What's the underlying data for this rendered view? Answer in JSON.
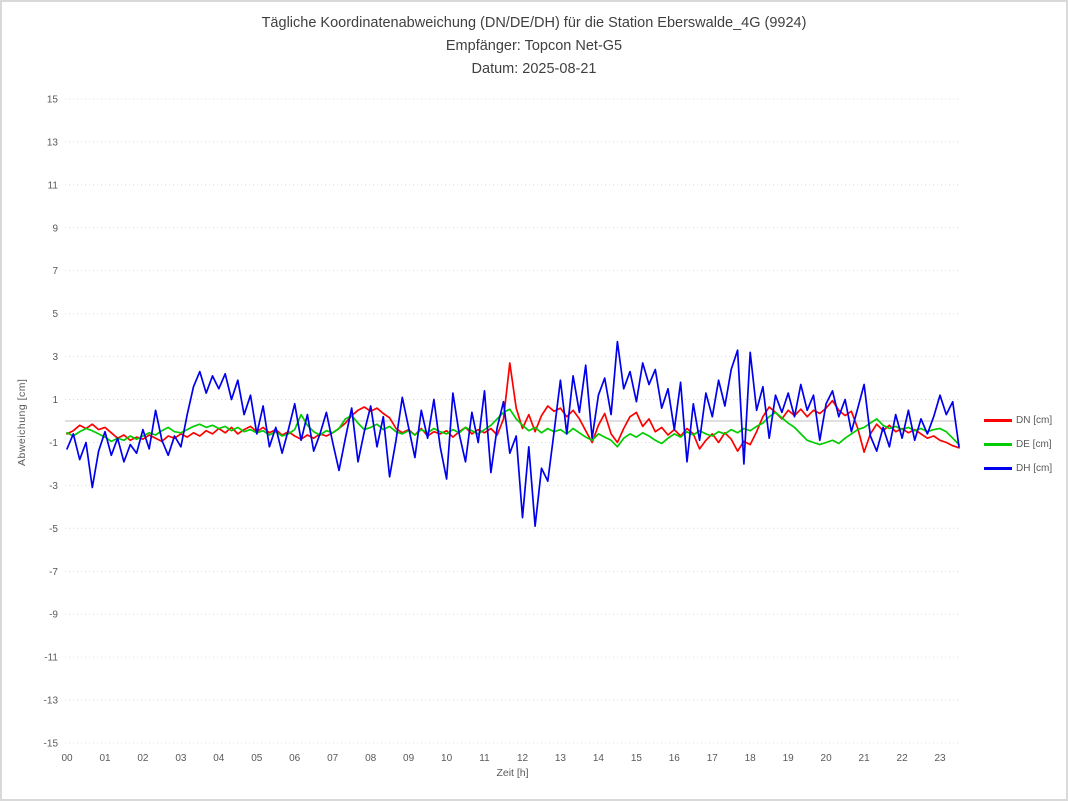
{
  "window": {
    "background": "#ffffff",
    "border_color": "#d9d9d9"
  },
  "chart_data": {
    "type": "line",
    "titles": [
      "Tägliche Koordinatenabweichung (DN/DE/DH) für die Station Eberswalde_4G (9924)",
      "Empfänger: Topcon Net-G5",
      "Datum: 2025-08-21"
    ],
    "xlabel": "Zeit [h]",
    "ylabel": "Abweichung [cm]",
    "ylim": [
      -15,
      15
    ],
    "xlim_hours": [
      0,
      24
    ],
    "y_ticks": [
      15,
      13,
      11,
      9,
      7,
      5,
      3,
      1,
      -1,
      -3,
      -5,
      -7,
      -9,
      -11,
      -13,
      -15
    ],
    "x_ticks": [
      "00",
      "01",
      "02",
      "03",
      "04",
      "05",
      "06",
      "07",
      "08",
      "09",
      "10",
      "11",
      "12",
      "13",
      "14",
      "15",
      "16",
      "17",
      "18",
      "19",
      "20",
      "21",
      "22",
      "23"
    ],
    "grid": "horizontal-dotted",
    "grid_color": "#d9d9d9",
    "zero_line": true,
    "zero_line_color": "#bfbfbf",
    "legend_position": "right",
    "sample_interval_minutes": 10,
    "x_start_hour": 0,
    "series": [
      {
        "name": "DN [cm]",
        "color": "#ff0000",
        "values": [
          -0.6,
          -0.45,
          -0.2,
          -0.35,
          -0.15,
          -0.4,
          -0.3,
          -0.55,
          -0.8,
          -0.65,
          -0.9,
          -0.75,
          -0.85,
          -0.65,
          -0.8,
          -0.95,
          -0.7,
          -0.8,
          -0.6,
          -0.75,
          -0.55,
          -0.7,
          -0.45,
          -0.6,
          -0.35,
          -0.55,
          -0.3,
          -0.6,
          -0.4,
          -0.25,
          -0.5,
          -0.3,
          -0.55,
          -0.4,
          -0.65,
          -0.5,
          -0.7,
          -0.85,
          -0.65,
          -0.8,
          -0.6,
          -0.7,
          -0.55,
          -0.35,
          -0.1,
          0.25,
          0.5,
          0.65,
          0.45,
          0.6,
          0.35,
          0.15,
          -0.35,
          -0.55,
          -0.4,
          -0.65,
          -0.35,
          -0.7,
          -0.5,
          -0.6,
          -0.45,
          -0.75,
          -0.5,
          -0.3,
          -0.6,
          -0.4,
          -0.55,
          -0.35,
          -0.65,
          0.1,
          2.7,
          0.6,
          -0.35,
          0.3,
          -0.5,
          0.25,
          0.7,
          0.45,
          0.6,
          0.2,
          0.5,
          0.1,
          -0.45,
          -1.0,
          -0.2,
          0.35,
          -0.6,
          -1.0,
          -0.35,
          0.2,
          0.4,
          -0.25,
          0.1,
          -0.5,
          -0.3,
          -0.65,
          -0.4,
          -0.7,
          -0.35,
          -0.6,
          -1.3,
          -0.9,
          -0.6,
          -1.0,
          -0.55,
          -0.85,
          -1.4,
          -0.95,
          -1.1,
          -0.5,
          0.2,
          0.65,
          0.4,
          0.1,
          0.5,
          0.25,
          0.55,
          0.2,
          0.5,
          0.35,
          0.6,
          0.95,
          0.5,
          0.25,
          0.45,
          -0.35,
          -1.45,
          -0.6,
          -0.15,
          -0.45,
          -0.2,
          -0.5,
          -0.35,
          -0.55,
          -0.4,
          -0.6,
          -0.8,
          -0.7,
          -0.9,
          -1.0,
          -1.15,
          -1.25
        ]
      },
      {
        "name": "DE [cm]",
        "color": "#00cc00",
        "values": [
          -0.55,
          -0.7,
          -0.5,
          -0.35,
          -0.45,
          -0.6,
          -0.75,
          -0.95,
          -0.8,
          -0.9,
          -0.7,
          -0.85,
          -0.7,
          -0.55,
          -0.65,
          -0.45,
          -0.3,
          -0.5,
          -0.55,
          -0.4,
          -0.25,
          -0.15,
          -0.3,
          -0.2,
          -0.35,
          -0.25,
          -0.45,
          -0.3,
          -0.5,
          -0.4,
          -0.55,
          -0.45,
          -0.65,
          -0.5,
          -0.7,
          -0.6,
          -0.4,
          0.3,
          -0.2,
          -0.5,
          -0.65,
          -0.45,
          -0.55,
          -0.35,
          0.1,
          0.25,
          -0.1,
          -0.4,
          -0.3,
          -0.15,
          -0.4,
          -0.25,
          -0.5,
          -0.6,
          -0.45,
          -0.65,
          -0.4,
          -0.55,
          -0.35,
          -0.5,
          -0.6,
          -0.4,
          -0.55,
          -0.3,
          -0.45,
          -0.6,
          -0.4,
          -0.2,
          0.1,
          0.4,
          0.55,
          0.1,
          -0.2,
          -0.45,
          -0.3,
          -0.55,
          -0.35,
          -0.5,
          -0.4,
          -0.6,
          -0.35,
          -0.55,
          -0.75,
          -0.9,
          -0.6,
          -0.75,
          -0.9,
          -1.2,
          -0.8,
          -0.6,
          -0.75,
          -0.55,
          -0.7,
          -0.9,
          -1.05,
          -0.8,
          -0.6,
          -0.75,
          -0.5,
          -0.65,
          -0.45,
          -0.6,
          -0.7,
          -0.5,
          -0.6,
          -0.4,
          -0.55,
          -0.35,
          -0.45,
          -0.25,
          -0.1,
          0.2,
          0.4,
          0.15,
          -0.1,
          -0.3,
          -0.6,
          -0.9,
          -1.0,
          -1.1,
          -1.0,
          -0.9,
          -1.05,
          -0.8,
          -0.6,
          -0.4,
          -0.3,
          -0.1,
          0.1,
          -0.2,
          -0.35,
          -0.25,
          -0.4,
          -0.3,
          -0.45,
          -0.35,
          -0.5,
          -0.4,
          -0.35,
          -0.5,
          -0.8,
          -1.1
        ]
      },
      {
        "name": "DH [cm]",
        "color": "#0000ee",
        "values": [
          -1.3,
          -0.6,
          -1.8,
          -1.0,
          -3.1,
          -1.4,
          -0.5,
          -1.6,
          -0.8,
          -1.9,
          -1.1,
          -1.5,
          -0.4,
          -1.3,
          0.5,
          -0.9,
          -1.6,
          -0.7,
          -1.2,
          0.3,
          1.6,
          2.3,
          1.3,
          2.1,
          1.5,
          2.2,
          1.0,
          1.9,
          0.3,
          1.2,
          -0.6,
          0.7,
          -1.2,
          -0.3,
          -1.5,
          -0.4,
          0.8,
          -0.9,
          0.3,
          -1.4,
          -0.6,
          0.4,
          -1.0,
          -2.3,
          -0.8,
          0.6,
          -1.9,
          -0.5,
          0.7,
          -1.2,
          0.2,
          -2.6,
          -0.9,
          1.1,
          -0.3,
          -1.7,
          0.5,
          -0.8,
          1.0,
          -1.2,
          -2.7,
          1.3,
          -0.6,
          -1.9,
          0.4,
          -1.0,
          1.4,
          -2.4,
          -0.3,
          0.9,
          -1.5,
          -0.7,
          -4.5,
          -1.2,
          -4.9,
          -2.2,
          -2.8,
          -0.5,
          1.9,
          -0.6,
          2.1,
          0.4,
          2.6,
          -0.8,
          1.2,
          2.0,
          0.3,
          3.7,
          1.5,
          2.3,
          0.9,
          2.7,
          1.7,
          2.4,
          0.6,
          1.5,
          -0.4,
          1.8,
          -1.9,
          0.8,
          -0.9,
          1.3,
          0.2,
          1.9,
          0.7,
          2.4,
          3.3,
          -2.0,
          3.2,
          0.5,
          1.6,
          -0.8,
          1.2,
          0.4,
          1.3,
          0.2,
          1.7,
          0.5,
          1.2,
          -0.9,
          0.8,
          1.4,
          0.2,
          1.0,
          -0.5,
          0.6,
          1.7,
          -0.7,
          -1.4,
          -0.3,
          -1.2,
          0.3,
          -0.8,
          0.5,
          -0.9,
          0.1,
          -0.6,
          0.2,
          1.2,
          0.3,
          0.9,
          -1.2
        ]
      }
    ]
  }
}
